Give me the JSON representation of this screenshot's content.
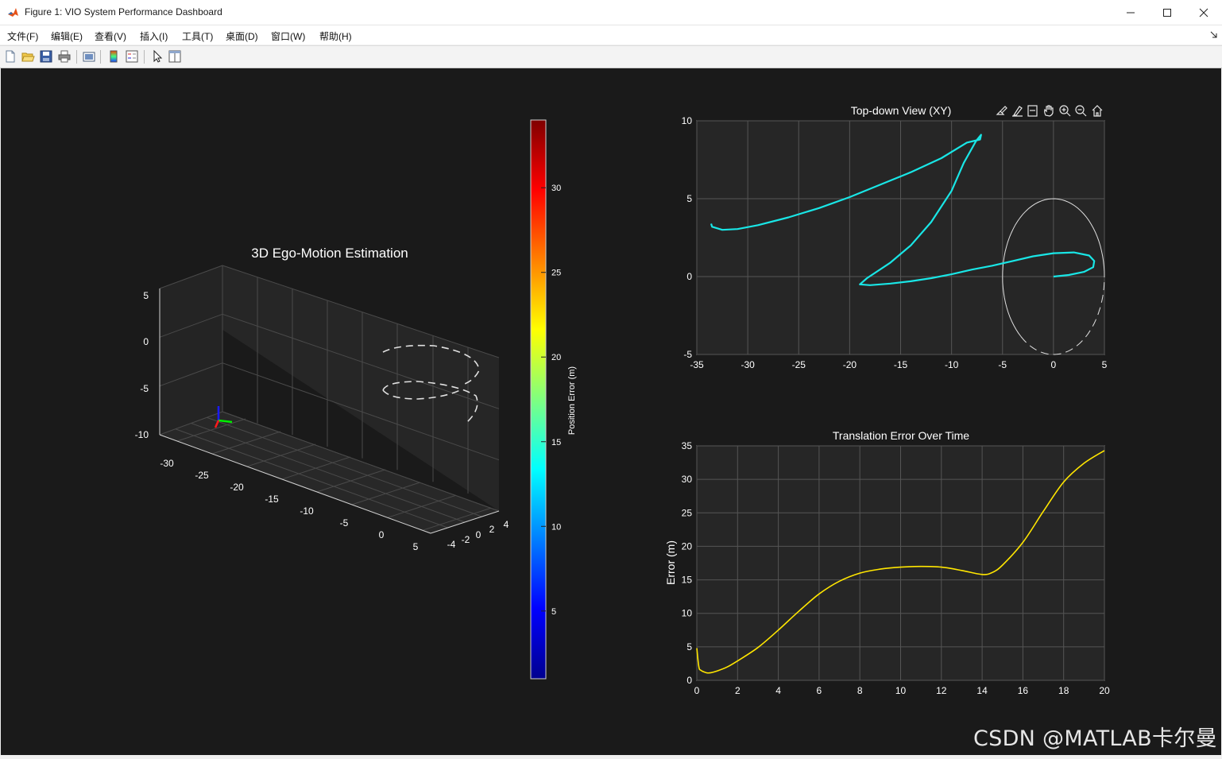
{
  "window": {
    "title": "Figure 1: VIO System Performance Dashboard",
    "controls": [
      "minimize",
      "maximize",
      "close"
    ]
  },
  "menu": {
    "items": [
      "文件(F)",
      "编辑(E)",
      "查看(V)",
      "插入(I)",
      "工具(T)",
      "桌面(D)",
      "窗口(W)",
      "帮助(H)"
    ]
  },
  "toolbar": {
    "icons": [
      "new-figure-icon",
      "open-file-icon",
      "save-icon",
      "print-icon",
      "link-plot-icon",
      "colorbar-icon",
      "legend-icon",
      "edit-plot-arrow-icon",
      "property-inspector-icon"
    ]
  },
  "axes_toolbar": {
    "icons": [
      "brush-icon",
      "data-tip-icon",
      "rotate-icon",
      "pan-icon",
      "zoom-in-icon",
      "zoom-out-icon",
      "home-icon"
    ]
  },
  "colors": {
    "figure_bg": "#1a1a1a",
    "axes_bg": "#262626",
    "grid": "#555555",
    "trajectory_xy": "#19e6e6",
    "error_line": "#ffe600",
    "reference_circle": "#e0e0e0"
  },
  "chart_data": [
    {
      "type": "line",
      "title": "3D Ego-Motion Estimation",
      "projection": "3d",
      "xticks": [
        "-30",
        "-25",
        "-20",
        "-15",
        "-10",
        "-5",
        "0",
        "5"
      ],
      "yticks": [
        "-4",
        "-2",
        "0",
        "2",
        "4"
      ],
      "zticks": [
        "5",
        "0",
        "-5",
        "-10"
      ],
      "xlim": [
        -33,
        5
      ],
      "ylim": [
        -5,
        5
      ],
      "zlim": [
        -11,
        6
      ],
      "series": [
        {
          "style": "dashed",
          "color": "#e0e0e0",
          "shape": "circle",
          "center": [
            0,
            0,
            -1
          ],
          "radius": 5
        },
        {
          "style": "dashed",
          "color": "#e0e0e0",
          "shape": "circle",
          "center": [
            0,
            0,
            -7
          ],
          "radius": 5
        }
      ],
      "frame_axes": {
        "x_color": "#ff0000",
        "y_color": "#00ff00",
        "z_color": "#0000ff"
      },
      "colorbar": {
        "label": "Position Error (m)",
        "colormap": "jet",
        "range": [
          1,
          34
        ],
        "ticks": [
          "5",
          "10",
          "15",
          "20",
          "25",
          "30"
        ],
        "tick_values": [
          5,
          10,
          15,
          20,
          25,
          30
        ]
      },
      "grid": true
    },
    {
      "type": "line",
      "title": "Top-down View (XY)",
      "xlim": [
        -35,
        5
      ],
      "ylim": [
        -5,
        10
      ],
      "xticks": [
        "-35",
        "-30",
        "-25",
        "-20",
        "-15",
        "-10",
        "-5",
        "0",
        "5"
      ],
      "yticks": [
        "10",
        "5",
        "0",
        "-5"
      ],
      "grid": true,
      "series": [
        {
          "color": "#19e6e6",
          "points": [
            [
              0,
              0
            ],
            [
              1.5,
              0.1
            ],
            [
              3,
              0.3
            ],
            [
              3.9,
              0.6
            ],
            [
              4,
              1
            ],
            [
              3.5,
              1.35
            ],
            [
              2,
              1.55
            ],
            [
              0,
              1.5
            ],
            [
              -2,
              1.3
            ],
            [
              -4,
              1.0
            ],
            [
              -6,
              0.7
            ],
            [
              -8,
              0.45
            ],
            [
              -10,
              0.15
            ],
            [
              -12,
              -0.1
            ],
            [
              -14,
              -0.3
            ],
            [
              -16,
              -0.45
            ],
            [
              -18,
              -0.55
            ],
            [
              -19,
              -0.5
            ],
            [
              -18.3,
              -0.1
            ],
            [
              -16,
              0.9
            ],
            [
              -14,
              2
            ],
            [
              -12,
              3.5
            ],
            [
              -10,
              5.5
            ],
            [
              -8.8,
              7.3
            ],
            [
              -7.6,
              8.7
            ],
            [
              -7.1,
              9.1
            ],
            [
              -7.2,
              8.8
            ],
            [
              -8.5,
              8.6
            ],
            [
              -11,
              7.6
            ],
            [
              -14,
              6.7
            ],
            [
              -17,
              5.9
            ],
            [
              -20,
              5.1
            ],
            [
              -23,
              4.4
            ],
            [
              -26,
              3.8
            ],
            [
              -29,
              3.3
            ],
            [
              -31,
              3.05
            ],
            [
              -32.5,
              3.0
            ],
            [
              -33.5,
              3.2
            ],
            [
              -33.6,
              3.4
            ]
          ]
        },
        {
          "color": "#e0e0e0",
          "shape": "circle",
          "center": [
            0,
            0
          ],
          "radius": 5,
          "style": "solid-then-dashed"
        }
      ]
    },
    {
      "type": "line",
      "title": "Translation Error Over Time",
      "ylabel": "Error (m)",
      "xlabel": "",
      "xlim": [
        0,
        20
      ],
      "ylim": [
        0,
        35
      ],
      "xticks": [
        "0",
        "2",
        "4",
        "6",
        "8",
        "10",
        "12",
        "14",
        "16",
        "18",
        "20"
      ],
      "yticks": [
        "35",
        "30",
        "25",
        "20",
        "15",
        "10",
        "5",
        "0"
      ],
      "grid": true,
      "series": [
        {
          "color": "#ffe600",
          "x": [
            0,
            0.1,
            0.2,
            0.4,
            0.6,
            1,
            1.5,
            2,
            3,
            4,
            5,
            6,
            7,
            8,
            9,
            10,
            11,
            12,
            13,
            14,
            14.5,
            15,
            16,
            17,
            18,
            19,
            20
          ],
          "y": [
            4.8,
            2.0,
            1.5,
            1.2,
            1.1,
            1.4,
            2.0,
            2.9,
            4.9,
            7.5,
            10.3,
            12.9,
            14.8,
            16.0,
            16.6,
            16.9,
            17.0,
            16.9,
            16.4,
            15.8,
            16.1,
            17.2,
            20.6,
            25.2,
            29.6,
            32.4,
            34.3
          ]
        }
      ]
    }
  ],
  "watermark": "CSDN @MATLAB卡尔曼"
}
